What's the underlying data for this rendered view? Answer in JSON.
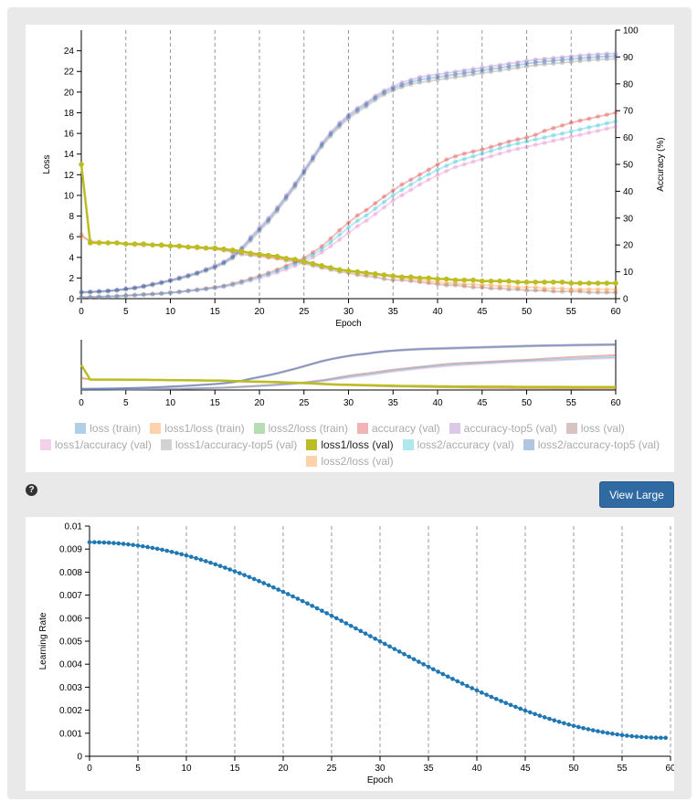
{
  "view_large_label": "View Large",
  "help_icon": "question-circle-icon",
  "legend": [
    {
      "label": "loss (train)",
      "color": "#1f77b4",
      "active": false
    },
    {
      "label": "loss1/loss (train)",
      "color": "#ff7f0e",
      "active": false
    },
    {
      "label": "loss2/loss (train)",
      "color": "#2ca02c",
      "active": false
    },
    {
      "label": "accuracy (val)",
      "color": "#d62728",
      "active": false
    },
    {
      "label": "accuracy-top5 (val)",
      "color": "#9467bd",
      "active": false
    },
    {
      "label": "loss (val)",
      "color": "#8c564b",
      "active": false
    },
    {
      "label": "loss1/accuracy (val)",
      "color": "#e377c2",
      "active": false
    },
    {
      "label": "loss1/accuracy-top5 (val)",
      "color": "#7f7f7f",
      "active": false
    },
    {
      "label": "loss1/loss (val)",
      "color": "#bcbd22",
      "active": true
    },
    {
      "label": "loss2/accuracy (val)",
      "color": "#17becf",
      "active": false
    },
    {
      "label": "loss2/accuracy-top5 (val)",
      "color": "#1f5fa8",
      "active": false
    },
    {
      "label": "loss2/loss (val)",
      "color": "#ff7f0e",
      "active": false
    }
  ],
  "chart_data": [
    {
      "type": "line",
      "xlabel": "Epoch",
      "ylabel": "Loss",
      "y2label": "Accuracy (%)",
      "xlim": [
        0,
        60
      ],
      "ylim": [
        0,
        26
      ],
      "y2lim": [
        0,
        100
      ],
      "x_ticks": [
        0,
        5,
        10,
        15,
        20,
        25,
        30,
        35,
        40,
        45,
        50,
        55,
        60
      ],
      "y_ticks": [
        0,
        2,
        4,
        6,
        8,
        10,
        12,
        14,
        16,
        18,
        20,
        22,
        24
      ],
      "y2_ticks": [
        0,
        10,
        20,
        30,
        40,
        50,
        60,
        70,
        80,
        90,
        100
      ],
      "grid_x": true,
      "x": [
        0,
        1,
        2,
        3,
        4,
        5,
        6,
        7,
        8,
        9,
        10,
        11,
        12,
        13,
        14,
        15,
        16,
        17,
        18,
        19,
        20,
        21,
        22,
        23,
        24,
        25,
        26,
        27,
        28,
        29,
        30,
        31,
        32,
        33,
        34,
        35,
        36,
        37,
        38,
        39,
        40,
        41,
        42,
        43,
        44,
        45,
        46,
        47,
        48,
        49,
        50,
        51,
        52,
        53,
        54,
        55,
        56,
        57,
        58,
        59,
        60
      ],
      "series": [
        {
          "name": "loss1/loss (val)",
          "axis": "left",
          "color": "#bcbd22",
          "highlight": true,
          "values": [
            13.0,
            5.4,
            5.4,
            5.4,
            5.4,
            5.3,
            5.3,
            5.3,
            5.2,
            5.2,
            5.1,
            5.1,
            5.0,
            5.0,
            4.9,
            4.9,
            4.8,
            4.7,
            4.6,
            4.4,
            4.3,
            4.2,
            4.1,
            3.9,
            3.8,
            3.6,
            3.4,
            3.2,
            3.0,
            2.8,
            2.7,
            2.6,
            2.5,
            2.4,
            2.3,
            2.2,
            2.1,
            2.1,
            2.0,
            2.0,
            1.9,
            1.9,
            1.8,
            1.8,
            1.8,
            1.7,
            1.7,
            1.7,
            1.7,
            1.6,
            1.6,
            1.6,
            1.6,
            1.6,
            1.6,
            1.5,
            1.5,
            1.5,
            1.5,
            1.5,
            1.5
          ]
        },
        {
          "name": "loss (val)",
          "axis": "left",
          "color": "#8c564b",
          "highlight": false,
          "values": [
            6.2,
            5.5,
            5.4,
            5.4,
            5.4,
            5.3,
            5.3,
            5.2,
            5.2,
            5.2,
            5.1,
            5.1,
            5.0,
            4.9,
            4.9,
            4.8,
            4.7,
            4.5,
            4.3,
            4.2,
            4.1,
            4.0,
            3.9,
            3.7,
            3.6,
            3.4,
            3.2,
            3.0,
            2.8,
            2.6,
            2.5,
            2.3,
            2.2,
            2.1,
            1.9,
            1.8,
            1.8,
            1.7,
            1.6,
            1.5,
            1.4,
            1.3,
            1.3,
            1.2,
            1.1,
            1.1,
            1.0,
            1.0,
            0.9,
            0.9,
            0.8,
            0.8,
            0.8,
            0.7,
            0.7,
            0.7,
            0.7,
            0.6,
            0.6,
            0.6,
            0.6
          ]
        },
        {
          "name": "loss2/loss (val)",
          "axis": "left",
          "color": "#ff7f0e",
          "highlight": false,
          "values": [
            6.0,
            5.6,
            5.5,
            5.4,
            5.4,
            5.3,
            5.2,
            5.2,
            5.2,
            5.1,
            5.1,
            5.0,
            5.0,
            4.9,
            4.9,
            4.8,
            4.7,
            4.6,
            4.5,
            4.3,
            4.2,
            4.0,
            3.9,
            3.8,
            3.7,
            3.5,
            3.4,
            3.1,
            3.0,
            2.8,
            2.7,
            2.5,
            2.4,
            2.3,
            2.2,
            2.1,
            2.0,
            1.9,
            1.8,
            1.7,
            1.6,
            1.5,
            1.5,
            1.4,
            1.4,
            1.3,
            1.3,
            1.2,
            1.2,
            1.1,
            1.1,
            1.1,
            1.0,
            1.0,
            1.0,
            0.9,
            0.9,
            0.9,
            0.9,
            0.9,
            0.9
          ]
        },
        {
          "name": "accuracy (val)",
          "axis": "right",
          "color": "#d62728",
          "highlight": false,
          "values": [
            0.5,
            0.6,
            0.7,
            0.8,
            1.0,
            1.2,
            1.4,
            1.6,
            1.8,
            2.0,
            2.3,
            2.6,
            3.0,
            3.4,
            3.8,
            4.3,
            4.8,
            5.6,
            6.5,
            7.5,
            8.5,
            9.6,
            10.8,
            12.2,
            13.6,
            15.1,
            17.2,
            19.5,
            22.4,
            25.5,
            28.3,
            31.0,
            33.0,
            35.5,
            38.0,
            40.3,
            42.5,
            44.3,
            46.2,
            48.0,
            50.0,
            51.8,
            53.0,
            54.0,
            54.8,
            55.5,
            56.5,
            57.5,
            58.5,
            59.3,
            60.0,
            61.0,
            62.5,
            63.5,
            64.5,
            65.5,
            66.3,
            67.0,
            67.8,
            68.5,
            69.3
          ]
        },
        {
          "name": "accuracy-top5 (val)",
          "axis": "right",
          "color": "#9467bd",
          "highlight": false,
          "values": [
            2.5,
            2.6,
            2.8,
            3.0,
            3.3,
            3.7,
            4.2,
            4.8,
            5.5,
            6.2,
            7.0,
            7.9,
            8.8,
            9.8,
            11.0,
            12.3,
            13.8,
            16.0,
            19.0,
            23.0,
            26.5,
            30.0,
            34.0,
            38.5,
            43.0,
            48.0,
            53.0,
            58.0,
            62.0,
            65.5,
            68.5,
            71.0,
            73.0,
            75.5,
            77.5,
            79.0,
            80.5,
            81.5,
            82.5,
            83.0,
            83.5,
            84.0,
            84.5,
            85.0,
            85.5,
            86.0,
            86.5,
            87.0,
            87.5,
            88.0,
            88.5,
            89.0,
            89.3,
            89.6,
            89.9,
            90.2,
            90.5,
            90.8,
            91.0,
            91.2,
            91.3
          ]
        },
        {
          "name": "loss1/accuracy (val)",
          "axis": "right",
          "color": "#e377c2",
          "highlight": false,
          "values": [
            0.4,
            0.5,
            0.6,
            0.7,
            0.8,
            1.0,
            1.2,
            1.4,
            1.6,
            1.8,
            2.1,
            2.4,
            2.8,
            3.1,
            3.5,
            3.9,
            4.4,
            5.0,
            5.8,
            6.7,
            7.6,
            8.6,
            9.7,
            10.9,
            12.2,
            13.6,
            15.3,
            17.2,
            19.5,
            22.0,
            24.5,
            27.0,
            29.0,
            31.5,
            34.0,
            36.5,
            38.5,
            40.5,
            42.5,
            44.3,
            46.0,
            47.5,
            49.0,
            50.0,
            51.0,
            52.0,
            53.0,
            54.0,
            55.0,
            55.8,
            56.5,
            57.3,
            58.0,
            58.8,
            59.5,
            60.3,
            61.0,
            61.8,
            62.5,
            63.3,
            64.0
          ]
        },
        {
          "name": "loss1/accuracy-top5 (val)",
          "axis": "right",
          "color": "#7f7f7f",
          "highlight": false,
          "values": [
            2.2,
            2.3,
            2.5,
            2.7,
            3.0,
            3.4,
            3.8,
            4.4,
            5.0,
            5.7,
            6.5,
            7.3,
            8.2,
            9.2,
            10.3,
            11.5,
            13.0,
            15.0,
            17.8,
            21.5,
            25.0,
            28.5,
            32.5,
            37.0,
            41.5,
            46.5,
            51.5,
            56.5,
            60.5,
            64.0,
            67.0,
            69.5,
            71.5,
            74.0,
            76.0,
            77.5,
            78.8,
            79.8,
            80.5,
            81.0,
            81.5,
            82.0,
            82.5,
            83.0,
            83.5,
            84.0,
            84.5,
            85.0,
            85.5,
            86.0,
            86.5,
            87.0,
            87.3,
            87.6,
            87.9,
            88.2,
            88.5,
            88.8,
            89.0,
            89.2,
            89.3
          ]
        },
        {
          "name": "loss2/accuracy (val)",
          "axis": "right",
          "color": "#17becf",
          "highlight": false,
          "values": [
            0.5,
            0.6,
            0.7,
            0.8,
            0.9,
            1.1,
            1.3,
            1.5,
            1.7,
            1.9,
            2.2,
            2.5,
            2.9,
            3.2,
            3.6,
            4.1,
            4.6,
            5.3,
            6.1,
            7.1,
            8.1,
            9.1,
            10.3,
            11.6,
            13.0,
            14.4,
            16.3,
            18.4,
            21.0,
            23.8,
            26.5,
            29.0,
            31.0,
            33.5,
            36.0,
            38.5,
            40.5,
            42.5,
            44.5,
            46.3,
            48.0,
            49.5,
            51.0,
            52.0,
            53.0,
            54.0,
            55.0,
            56.0,
            57.0,
            57.8,
            58.5,
            59.3,
            60.0,
            60.8,
            61.5,
            62.3,
            63.0,
            63.8,
            64.5,
            65.3,
            66.0
          ]
        },
        {
          "name": "loss2/accuracy-top5 (val)",
          "axis": "right",
          "color": "#1f5fa8",
          "highlight": false,
          "values": [
            2.4,
            2.5,
            2.7,
            2.9,
            3.2,
            3.6,
            4.0,
            4.6,
            5.3,
            6.0,
            6.8,
            7.6,
            8.5,
            9.5,
            10.7,
            11.9,
            13.4,
            15.5,
            18.5,
            22.3,
            25.8,
            29.3,
            33.3,
            37.8,
            42.3,
            47.3,
            52.3,
            57.3,
            61.3,
            64.8,
            67.8,
            70.3,
            72.3,
            74.8,
            76.8,
            78.3,
            79.6,
            80.6,
            81.5,
            82.0,
            82.5,
            83.0,
            83.5,
            84.0,
            84.5,
            85.0,
            85.5,
            86.0,
            86.5,
            87.0,
            87.5,
            88.0,
            88.3,
            88.6,
            88.9,
            89.2,
            89.5,
            89.8,
            90.0,
            90.2,
            90.3
          ]
        }
      ]
    },
    {
      "type": "line",
      "xlabel": "",
      "ylabel": "",
      "xlim": [
        0,
        60
      ],
      "x_ticks": [
        0,
        5,
        10,
        15,
        20,
        25,
        30,
        35,
        40,
        45,
        50,
        55,
        60
      ],
      "grid_x": false,
      "note_role": "overview"
    },
    {
      "type": "scatter",
      "xlabel": "Epoch",
      "ylabel": "Learning Rate",
      "xlim": [
        0,
        60
      ],
      "ylim": [
        0,
        0.01
      ],
      "x_ticks": [
        0,
        5,
        10,
        15,
        20,
        25,
        30,
        35,
        40,
        45,
        50,
        55,
        60
      ],
      "y_ticks": [
        "0",
        "0.001",
        "0.002",
        "0.003",
        "0.004",
        "0.005",
        "0.006",
        "0.007",
        "0.008",
        "0.009",
        "0.01"
      ],
      "grid_x": true,
      "series": [
        {
          "color": "#1f77b4",
          "formula": "cosine decay from 0.0093 at epoch 0 to about 0.0008 at epoch 59.5",
          "x_start": 0,
          "x_end": 59.5,
          "x_step": 0.5,
          "start_value": 0.0093,
          "end_value": 0.0008
        }
      ]
    }
  ]
}
